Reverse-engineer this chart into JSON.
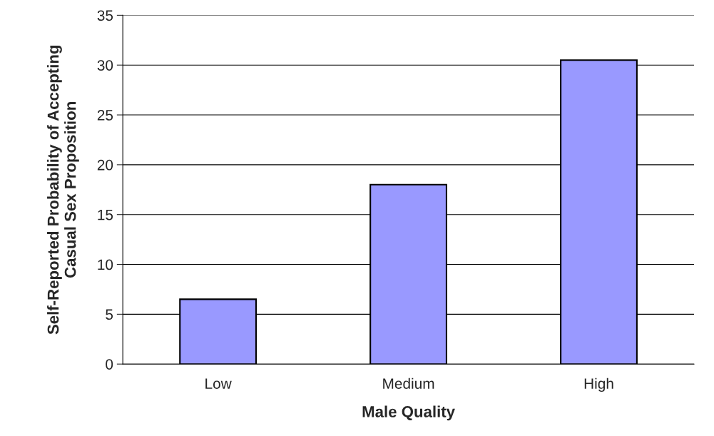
{
  "chart_data": {
    "type": "bar",
    "xlabel": "Male Quality",
    "ylabel": "Self-Reported Probability of Accepting\nCasual Sex Proposition",
    "categories": [
      "Low",
      "Medium",
      "High"
    ],
    "values": [
      6.5,
      18.0,
      30.5
    ],
    "color": "#9999ff",
    "ylim": [
      0,
      35
    ],
    "yticks": [
      0,
      5,
      10,
      15,
      20,
      25,
      30,
      35
    ],
    "grid": "y",
    "legend": false
  }
}
